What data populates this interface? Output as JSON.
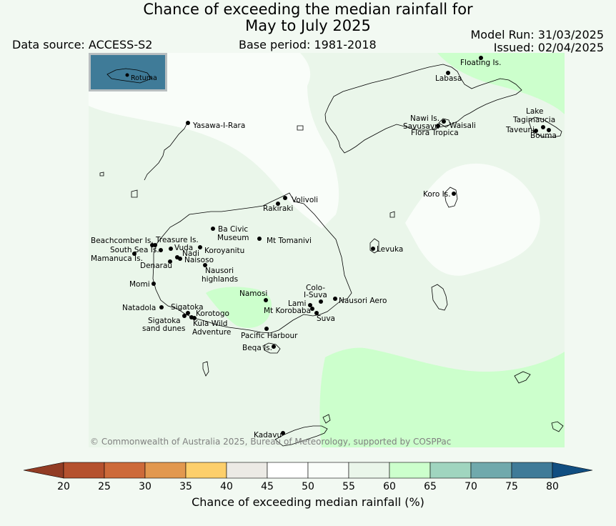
{
  "header": {
    "title_line1": "Chance of exceeding the median rainfall for",
    "title_line2": "May to July 2025",
    "data_source": "Data source: ACCESS-S2",
    "base_period": "Base period: 1981-2018",
    "model_run": "Model Run: 31/03/2025",
    "issued": "Issued: 02/04/2025"
  },
  "copyright": "© Commonwealth of Australia 2025, Bureau of Meteorology, supported by COSPPac",
  "inset_label": "Rotuma",
  "places": [
    {
      "name": "Floating Is."
    },
    {
      "name": "Labasa"
    },
    {
      "name": "Yasawa-I-Rara"
    },
    {
      "name": "Nawi Is."
    },
    {
      "name": "Savusavu"
    },
    {
      "name": "Waisali"
    },
    {
      "name": "Flora Tropica"
    },
    {
      "name": "Lake"
    },
    {
      "name": "Tagimaucia"
    },
    {
      "name": "Taveuni"
    },
    {
      "name": "Bouma"
    },
    {
      "name": "Koro Is."
    },
    {
      "name": "Volivoli"
    },
    {
      "name": "Rakiraki"
    },
    {
      "name": "Ba Civic"
    },
    {
      "name": "Museum"
    },
    {
      "name": "Mt Tomanivi"
    },
    {
      "name": "Beachcomber Is."
    },
    {
      "name": "Treasure Is."
    },
    {
      "name": "South Sea Is."
    },
    {
      "name": "Vuda"
    },
    {
      "name": "Koroyanitu"
    },
    {
      "name": "Nadi"
    },
    {
      "name": "Mamanuca Is."
    },
    {
      "name": "Naisoso"
    },
    {
      "name": "Denarau"
    },
    {
      "name": "Nausori"
    },
    {
      "name": "highlands"
    },
    {
      "name": "Levuka"
    },
    {
      "name": "Momi"
    },
    {
      "name": "Namosi"
    },
    {
      "name": "Colo-"
    },
    {
      "name": "I-Suva"
    },
    {
      "name": "Lami"
    },
    {
      "name": "Nausori Aero"
    },
    {
      "name": "Mt Korobaba"
    },
    {
      "name": "Natadola"
    },
    {
      "name": "Sigatoka"
    },
    {
      "name": "Korotogo"
    },
    {
      "name": "Suva"
    },
    {
      "name": "Sigatoka"
    },
    {
      "name": "sand dunes"
    },
    {
      "name": "Kula Wild"
    },
    {
      "name": "Adventure"
    },
    {
      "name": "Pacific Harbour"
    },
    {
      "name": "Beqa Is."
    },
    {
      "name": "Kadavu"
    }
  ],
  "colorbar": {
    "ticks": [
      "20",
      "25",
      "30",
      "35",
      "40",
      "45",
      "50",
      "55",
      "60",
      "65",
      "70",
      "75",
      "80"
    ],
    "colors": [
      "#b5512e",
      "#cd6a3a",
      "#e2984f",
      "#fdcf6b",
      "#eceae5",
      "#ffffff",
      "#f9fdf9",
      "#eaf6ea",
      "#ccffcc",
      "#a0d5bf",
      "#70a9ac",
      "#3f7b98"
    ],
    "under_color": "#923c24",
    "over_color": "#114e81",
    "label": "Chance of exceeding median rainfall (%)"
  },
  "field_colors": {
    "base": "#eaf6ea",
    "band_50_55": "#f9fdf9",
    "band_60_65": "#ccffcc",
    "inset": "#3f7b98"
  }
}
